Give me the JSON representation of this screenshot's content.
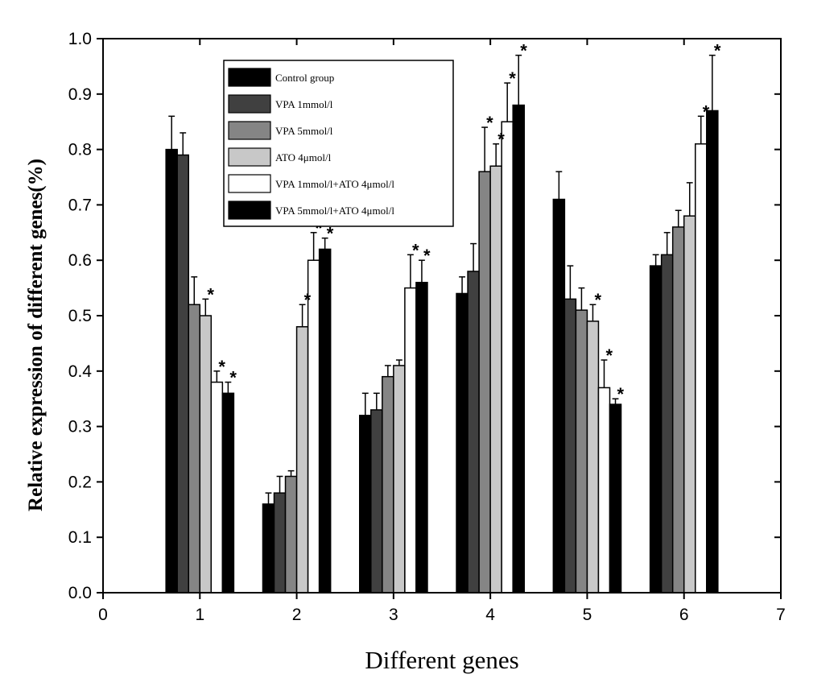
{
  "chart_data": {
    "type": "bar",
    "xlabel": "Different genes",
    "ylabel": "Relative expression of different genes(%)",
    "xlim": [
      0,
      7
    ],
    "ylim": [
      0,
      1.0
    ],
    "x_ticks": [
      "0",
      "1",
      "2",
      "3",
      "4",
      "5",
      "6",
      "7"
    ],
    "y_ticks": [
      "0.0",
      "0.1",
      "0.2",
      "0.3",
      "0.4",
      "0.5",
      "0.6",
      "0.7",
      "0.8",
      "0.9",
      "1.0"
    ],
    "categories": [
      "1",
      "2",
      "3",
      "4",
      "5",
      "6"
    ],
    "legend_position": "top-left",
    "grid": false,
    "significance_marker": "*",
    "series": [
      {
        "name": "Control group",
        "color": "#000000",
        "values": [
          0.8,
          0.16,
          0.32,
          0.54,
          0.71,
          0.59
        ],
        "errors": [
          0.06,
          0.02,
          0.04,
          0.03,
          0.05,
          0.02
        ],
        "significant": [
          false,
          false,
          false,
          false,
          false,
          false
        ]
      },
      {
        "name": "VPA 1mmol/l",
        "color": "#404040",
        "values": [
          0.79,
          0.18,
          0.33,
          0.58,
          0.53,
          0.61
        ],
        "errors": [
          0.04,
          0.03,
          0.03,
          0.05,
          0.06,
          0.04
        ],
        "significant": [
          false,
          false,
          false,
          false,
          false,
          false
        ]
      },
      {
        "name": "VPA 5mmol/l",
        "color": "#858585",
        "values": [
          0.52,
          0.21,
          0.39,
          0.76,
          0.51,
          0.66
        ],
        "errors": [
          0.05,
          0.01,
          0.02,
          0.08,
          0.04,
          0.03
        ],
        "significant": [
          false,
          false,
          false,
          true,
          false,
          false
        ]
      },
      {
        "name": "ATO 4μmol/l",
        "color": "#c8c8c8",
        "values": [
          0.5,
          0.48,
          0.41,
          0.77,
          0.49,
          0.68
        ],
        "errors": [
          0.03,
          0.04,
          0.01,
          0.04,
          0.03,
          0.06
        ],
        "significant": [
          true,
          true,
          false,
          true,
          true,
          false
        ]
      },
      {
        "name": "VPA 1mmol/l+ATO 4μmol/l",
        "color": "#ffffff",
        "values": [
          0.38,
          0.6,
          0.55,
          0.85,
          0.37,
          0.81
        ],
        "errors": [
          0.02,
          0.05,
          0.06,
          0.07,
          0.05,
          0.05
        ],
        "significant": [
          true,
          true,
          true,
          true,
          true,
          true
        ]
      },
      {
        "name": "VPA 5mmol/l+ATO 4μmol/l",
        "color": "#000000",
        "values": [
          0.36,
          0.62,
          0.56,
          0.88,
          0.34,
          0.87
        ],
        "errors": [
          0.02,
          0.02,
          0.04,
          0.09,
          0.01,
          0.1
        ],
        "significant": [
          true,
          true,
          true,
          true,
          true,
          true
        ]
      }
    ]
  }
}
